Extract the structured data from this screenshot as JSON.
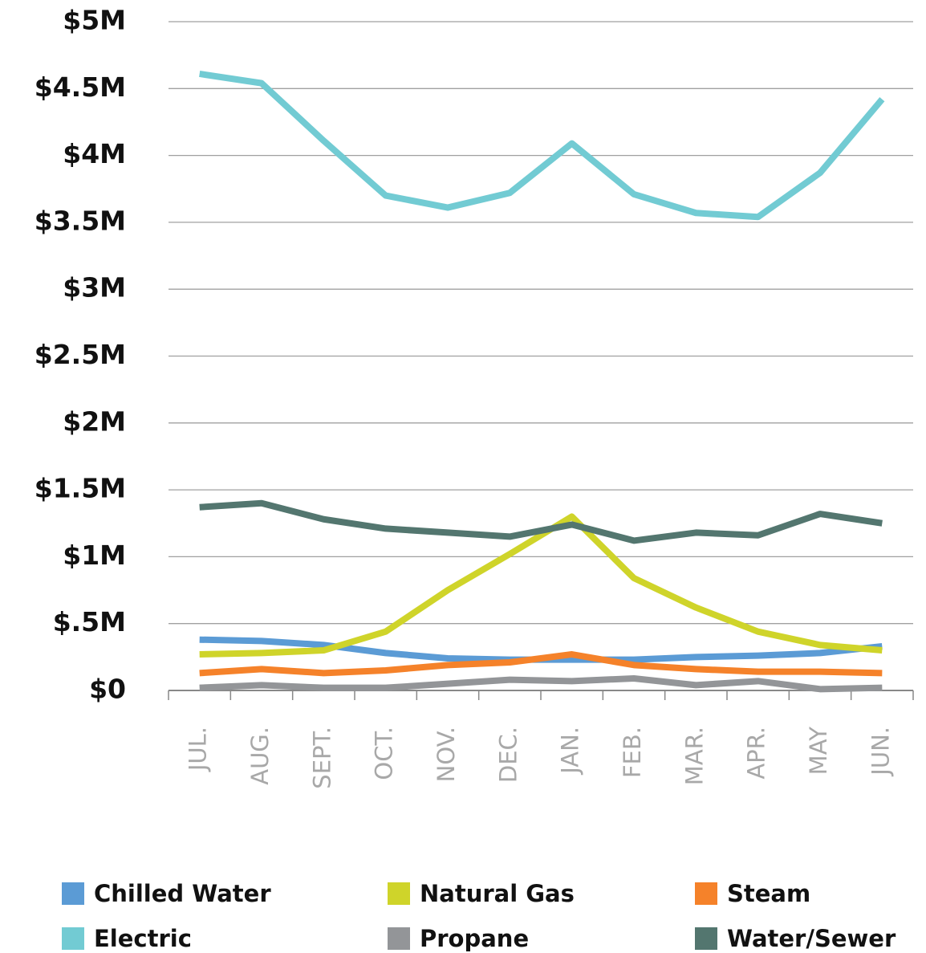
{
  "chart_data": {
    "type": "line",
    "categories": [
      "JUL.",
      "AUG.",
      "SEPT.",
      "OCT.",
      "NOV.",
      "DEC.",
      "JAN.",
      "FEB.",
      "MAR.",
      "APR.",
      "MAY",
      "JUN."
    ],
    "series": [
      {
        "name": "Chilled Water",
        "color": "#5b9bd5",
        "values": [
          380000,
          370000,
          340000,
          280000,
          240000,
          230000,
          230000,
          230000,
          250000,
          260000,
          280000,
          330000
        ]
      },
      {
        "name": "Electric",
        "color": "#72cbd3",
        "values": [
          4610000,
          4540000,
          4110000,
          3700000,
          3610000,
          3720000,
          4090000,
          3710000,
          3570000,
          3540000,
          3870000,
          4420000
        ]
      },
      {
        "name": "Natural Gas",
        "color": "#cfd42a",
        "values": [
          270000,
          280000,
          300000,
          440000,
          750000,
          1020000,
          1300000,
          840000,
          620000,
          440000,
          340000,
          300000
        ]
      },
      {
        "name": "Propane",
        "color": "#939598",
        "values": [
          20000,
          40000,
          20000,
          20000,
          50000,
          80000,
          70000,
          90000,
          40000,
          70000,
          10000,
          20000
        ]
      },
      {
        "name": "Steam",
        "color": "#f5822a",
        "values": [
          130000,
          160000,
          130000,
          150000,
          190000,
          210000,
          270000,
          190000,
          160000,
          140000,
          140000,
          130000
        ]
      },
      {
        "name": "Water/Sewer",
        "color": "#53766f",
        "values": [
          1370000,
          1400000,
          1280000,
          1210000,
          1180000,
          1150000,
          1240000,
          1120000,
          1180000,
          1160000,
          1320000,
          1250000
        ]
      }
    ],
    "ylim": [
      0,
      5000000
    ],
    "yticks": [
      {
        "value": 0,
        "label": "$0"
      },
      {
        "value": 500000,
        "label": "$.5M"
      },
      {
        "value": 1000000,
        "label": "$1M"
      },
      {
        "value": 1500000,
        "label": "$1.5M"
      },
      {
        "value": 2000000,
        "label": "$2M"
      },
      {
        "value": 2500000,
        "label": "$2.5M"
      },
      {
        "value": 3000000,
        "label": "$3M"
      },
      {
        "value": 3500000,
        "label": "$3.5M"
      },
      {
        "value": 4000000,
        "label": "$4M"
      },
      {
        "value": 4500000,
        "label": "$4.5M"
      },
      {
        "value": 5000000,
        "label": "$5M"
      }
    ],
    "grid": true
  }
}
